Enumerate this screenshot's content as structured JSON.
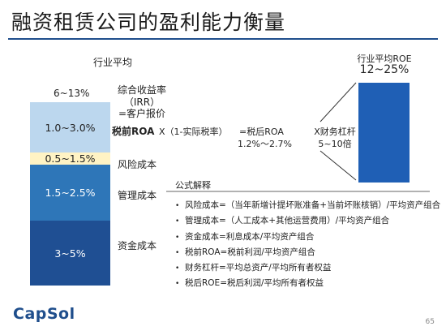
{
  "title": "融资租赁公司的盈利能力衡量",
  "labels": {
    "industry_avg": "行业平均",
    "irr_line1": "综合收益率",
    "irr_line2": "（IRR）",
    "irr_line3": "=客户报价",
    "pretax_roa": "税前ROA",
    "formula_tax": "X（1-实际税率）",
    "aftertax_roa": "=税后ROA",
    "aftertax_range": "1.2%～2.7%",
    "leverage": "X财务杠杆",
    "leverage_range": "5~10倍",
    "risk_cost": "风险成本",
    "mgmt_cost": "管理成本",
    "capital_cost": "资金成本",
    "roe_label": "行业平均ROE",
    "roe_value": "12~25%",
    "formula_title": "公式解释"
  },
  "column": {
    "total_range": "6~13%",
    "segments": [
      {
        "label": "1.0~3.0%",
        "color": "#bcd7ee"
      },
      {
        "label": "0.5~1.5%",
        "color": "#fff3c4"
      },
      {
        "label": "1.5~2.5%",
        "color": "#2e76b8"
      },
      {
        "label": "3~5%",
        "color": "#1f4f93"
      }
    ]
  },
  "formulas": [
    "风险成本=（当年新增计提坏账准备+当前坏账核销）/平均资产组合",
    "管理成本=（人工成本+其他运营费用）/平均资产组合",
    "资金成本=利息成本/平均资产组合",
    "税前ROA=税前利润/平均资产组合",
    "财务杠杆=平均总资产/平均所有者权益",
    "税后ROE=税后利润/平均所有者权益"
  ],
  "bullet": "•",
  "logo": "CapSol",
  "page_number": "65",
  "colors": {
    "accent": "#1f4e8c",
    "roe_bar": "#1f5fb5"
  }
}
